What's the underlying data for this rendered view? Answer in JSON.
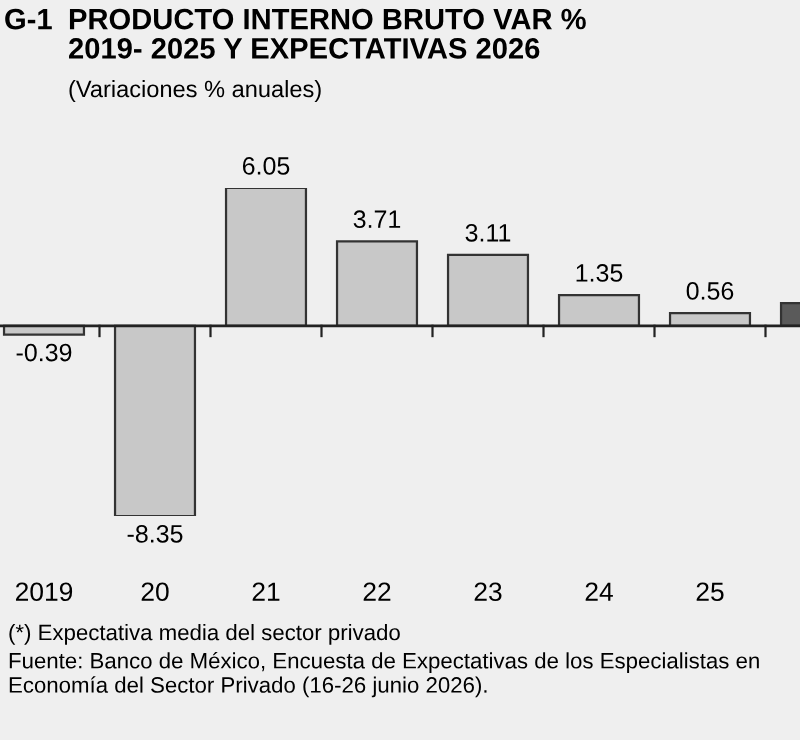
{
  "chart_data": {
    "type": "bar",
    "title": "PRODUCTO INTERNO BRUTO VAR %\n2019- 2025 Y EXPECTATIVAS 2026",
    "subtitle": "(Variaciones % anuales)",
    "categories": [
      "2019",
      "20",
      "21",
      "22",
      "23",
      "24",
      "25",
      null
    ],
    "values": [
      -0.39,
      -8.35,
      6.05,
      3.71,
      3.11,
      1.35,
      0.56,
      1.0
    ],
    "colors": [
      "#c8c8c8",
      "#c8c8c8",
      "#c8c8c8",
      "#c8c8c8",
      "#c8c8c8",
      "#c8c8c8",
      "#c8c8c8",
      "#5a5a5a"
    ],
    "value_labels": [
      "-0.39",
      "-8.35",
      "6.05",
      "3.71",
      "3.11",
      "1.35",
      "0.56",
      null
    ],
    "annotations": [
      "G-1",
      "(*) Expectativa media del sector privado",
      "Fuente: Banco de México, Encuesta de Expectativas de los Especialistas en Economía del Sector Privado (16-26 junio 2026)."
    ]
  }
}
